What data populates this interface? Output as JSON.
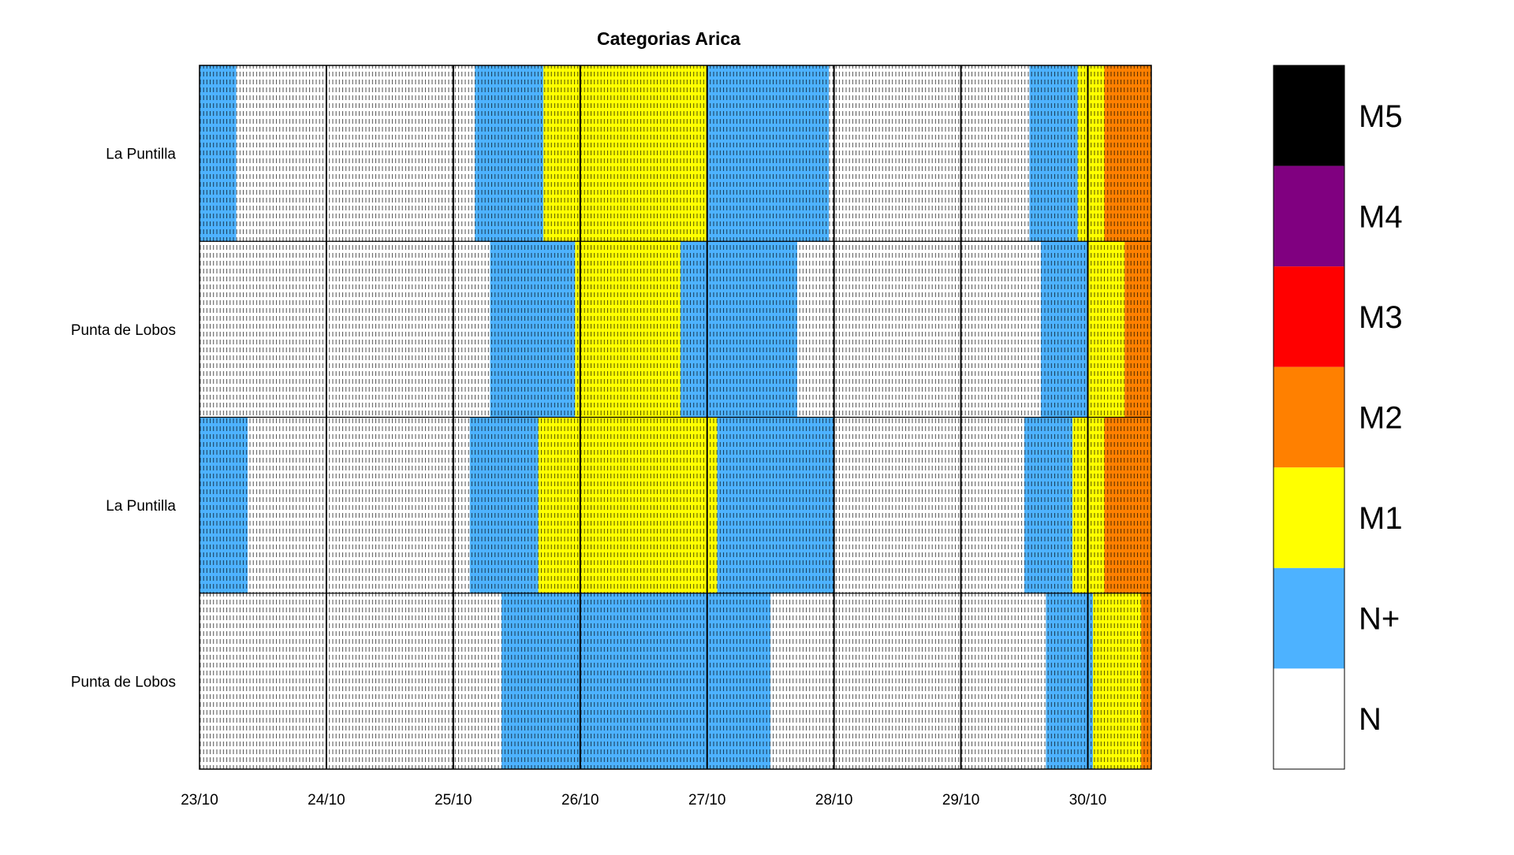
{
  "chart_data": {
    "type": "heatmap",
    "title": "Categorias Arica",
    "xlabel": "",
    "ylabel": "",
    "x_tick_labels": [
      "23/10",
      "24/10",
      "25/10",
      "26/10",
      "27/10",
      "28/10",
      "29/10",
      "30/10"
    ],
    "x_range_days": [
      0,
      7.5
    ],
    "rows": [
      "La Puntilla",
      "Punta de Lobos",
      "La Puntilla",
      "Punta de Lobos"
    ],
    "categories": [
      "N",
      "N+",
      "M1",
      "M2",
      "M3",
      "M4",
      "M5"
    ],
    "colors": {
      "N": "#ffffff",
      "N+": "#4db2ff",
      "M1": "#ffff00",
      "M2": "#ff8000",
      "M3": "#ff0000",
      "M4": "#800080",
      "M5": "#000000"
    },
    "colorbar_labels": [
      "M5",
      "M4",
      "M3",
      "M2",
      "M1",
      "N+",
      "N"
    ],
    "segments": [
      [
        {
          "category": "N+",
          "start_day": 0.0,
          "end_day": 0.29
        },
        {
          "category": "N",
          "start_day": 0.29,
          "end_day": 2.17
        },
        {
          "category": "N+",
          "start_day": 2.17,
          "end_day": 2.71
        },
        {
          "category": "M1",
          "start_day": 2.71,
          "end_day": 4.0
        },
        {
          "category": "N+",
          "start_day": 4.0,
          "end_day": 4.96
        },
        {
          "category": "N",
          "start_day": 4.96,
          "end_day": 6.54
        },
        {
          "category": "N+",
          "start_day": 6.54,
          "end_day": 6.92
        },
        {
          "category": "M1",
          "start_day": 6.92,
          "end_day": 7.13
        },
        {
          "category": "M2",
          "start_day": 7.13,
          "end_day": 7.5
        }
      ],
      [
        {
          "category": "N",
          "start_day": 0.0,
          "end_day": 2.29
        },
        {
          "category": "N+",
          "start_day": 2.29,
          "end_day": 2.96
        },
        {
          "category": "M1",
          "start_day": 2.96,
          "end_day": 3.79
        },
        {
          "category": "N+",
          "start_day": 3.79,
          "end_day": 4.71
        },
        {
          "category": "N",
          "start_day": 4.71,
          "end_day": 6.63
        },
        {
          "category": "N+",
          "start_day": 6.63,
          "end_day": 7.0
        },
        {
          "category": "M1",
          "start_day": 7.0,
          "end_day": 7.29
        },
        {
          "category": "M2",
          "start_day": 7.29,
          "end_day": 7.5
        }
      ],
      [
        {
          "category": "N+",
          "start_day": 0.0,
          "end_day": 0.38
        },
        {
          "category": "N",
          "start_day": 0.38,
          "end_day": 2.13
        },
        {
          "category": "N+",
          "start_day": 2.13,
          "end_day": 2.67
        },
        {
          "category": "M1",
          "start_day": 2.67,
          "end_day": 4.08
        },
        {
          "category": "N+",
          "start_day": 4.08,
          "end_day": 5.0
        },
        {
          "category": "N",
          "start_day": 5.0,
          "end_day": 6.5
        },
        {
          "category": "N+",
          "start_day": 6.5,
          "end_day": 6.88
        },
        {
          "category": "M1",
          "start_day": 6.88,
          "end_day": 7.13
        },
        {
          "category": "M2",
          "start_day": 7.13,
          "end_day": 7.5
        }
      ],
      [
        {
          "category": "N",
          "start_day": 0.0,
          "end_day": 2.38
        },
        {
          "category": "N+",
          "start_day": 2.38,
          "end_day": 4.5
        },
        {
          "category": "N",
          "start_day": 4.5,
          "end_day": 6.67
        },
        {
          "category": "N+",
          "start_day": 6.67,
          "end_day": 7.04
        },
        {
          "category": "M1",
          "start_day": 7.04,
          "end_day": 7.42
        },
        {
          "category": "M2",
          "start_day": 7.42,
          "end_day": 7.5
        }
      ]
    ],
    "grid": true
  }
}
